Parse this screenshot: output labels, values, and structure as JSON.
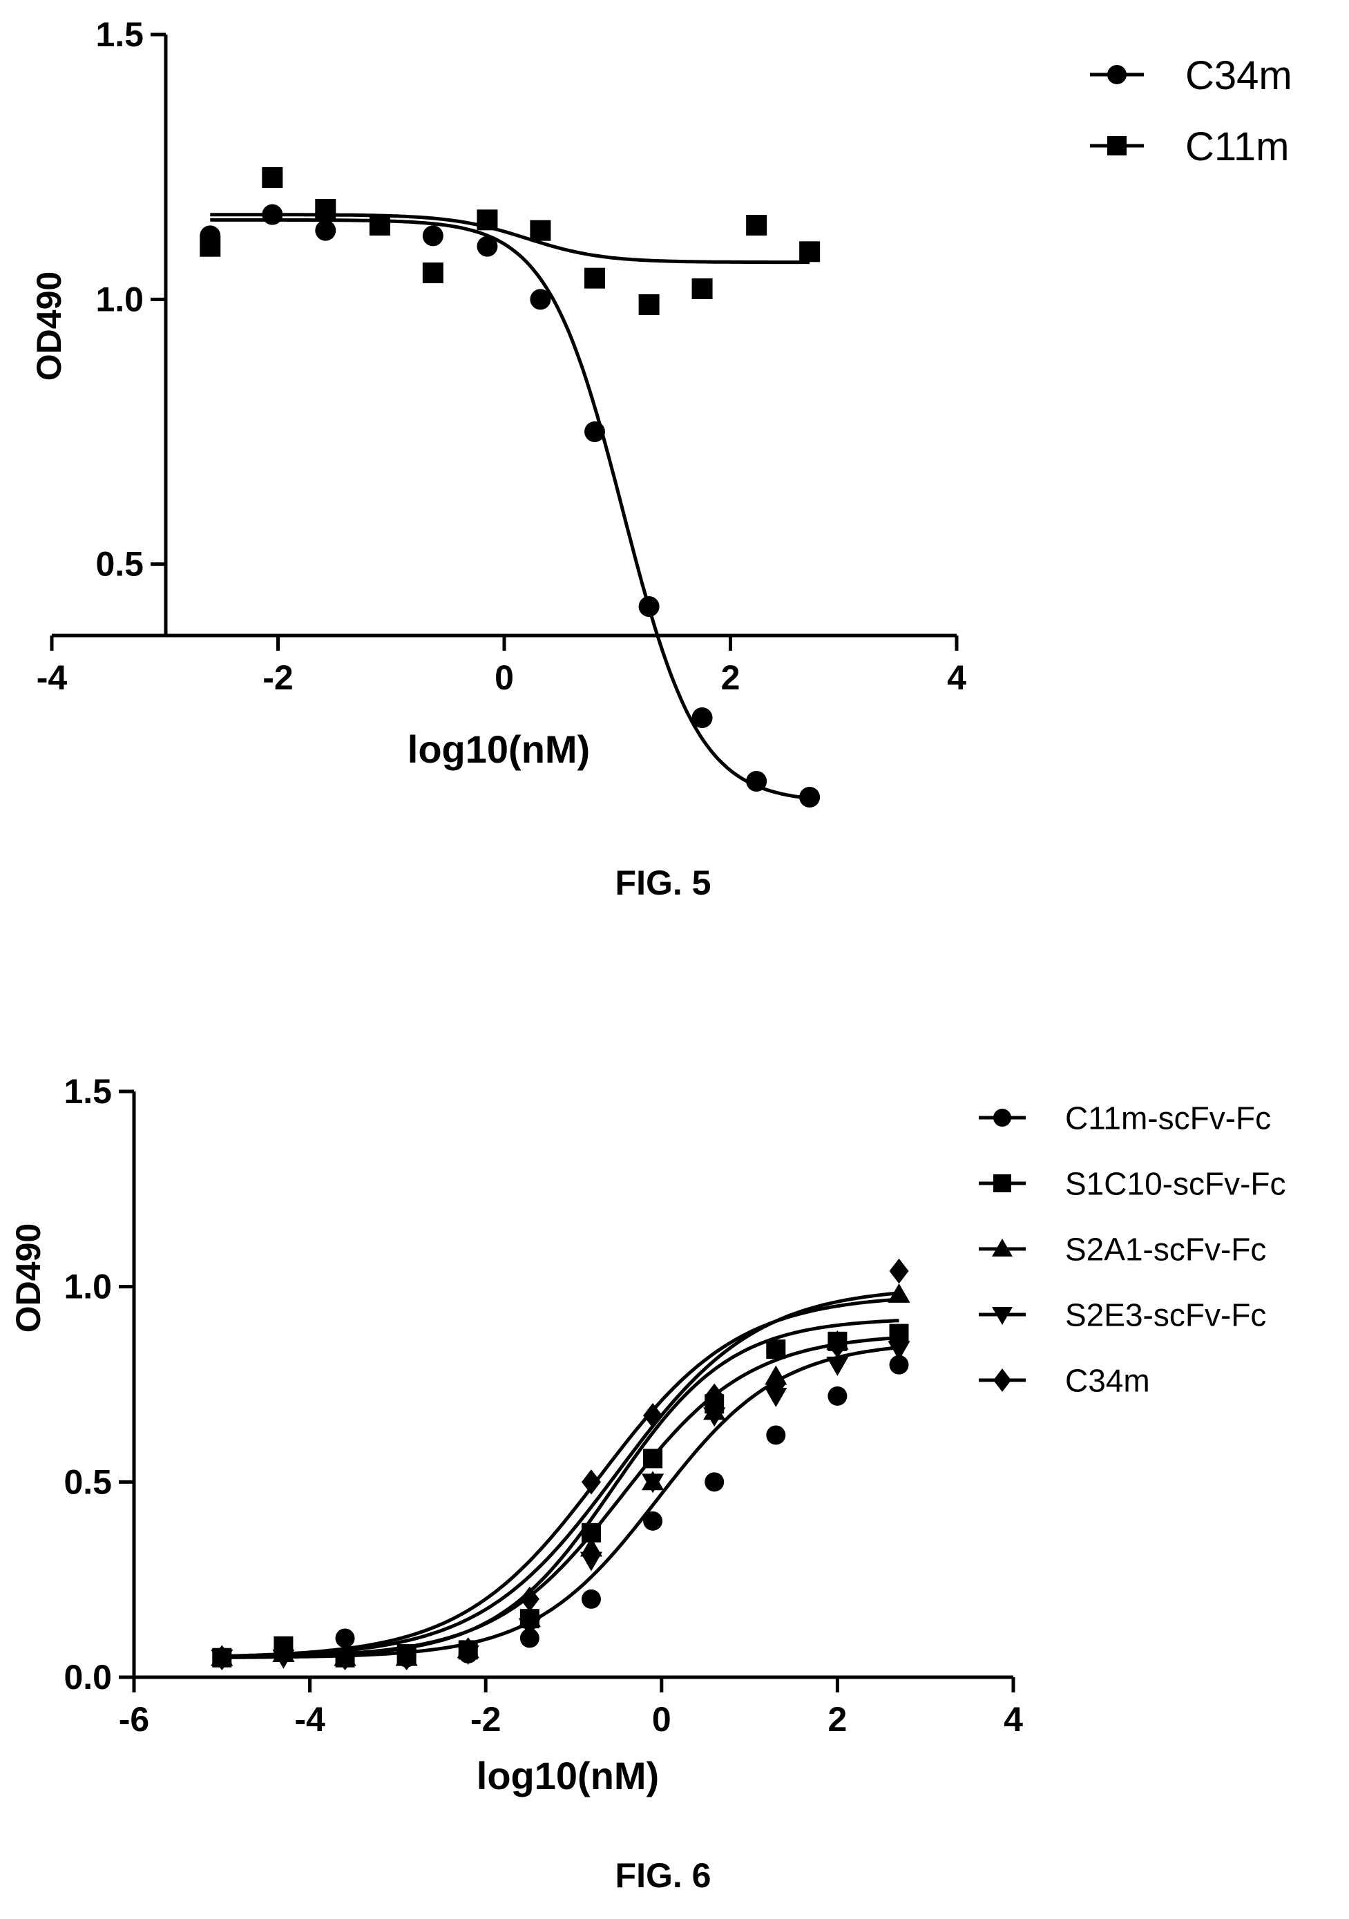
{
  "chart_data": [
    {
      "type": "scatter",
      "caption": "FIG. 5",
      "xlabel": "log10(nM)",
      "ylabel": "OD490",
      "xlim": [
        -4,
        4
      ],
      "ylim": [
        0,
        1.5
      ],
      "xticks": [
        -4,
        -2,
        0,
        2,
        4
      ],
      "yticks": [
        0.5,
        1.0,
        1.5
      ],
      "ytick_labels": [
        "0.5",
        "1.0",
        "1.5"
      ],
      "xtick_labels": [
        "-4",
        "-2",
        "0",
        "2",
        "4"
      ],
      "legend_position": "top-right",
      "series": [
        {
          "name": "C34m",
          "marker": "circle",
          "x": [
            -2.6,
            -2.05,
            -1.58,
            -1.1,
            -0.63,
            -0.15,
            0.32,
            0.8,
            1.28,
            1.75,
            2.23,
            2.7
          ],
          "y": [
            1.12,
            1.16,
            1.13,
            1.14,
            1.12,
            1.1,
            1.0,
            0.75,
            0.42,
            0.21,
            0.09,
            0.06
          ],
          "fit": {
            "model": "4PL",
            "top": 1.15,
            "bottom": 0.05,
            "logEC50": 1.05,
            "hill": -1.3
          }
        },
        {
          "name": "C11m",
          "marker": "square",
          "x": [
            -2.6,
            -2.05,
            -1.58,
            -1.1,
            -0.63,
            -0.15,
            0.32,
            0.8,
            1.28,
            1.75,
            2.23,
            2.7
          ],
          "y": [
            1.1,
            1.23,
            1.17,
            1.14,
            1.05,
            1.15,
            1.13,
            1.04,
            0.99,
            1.02,
            1.14,
            1.09
          ],
          "fit": {
            "model": "4PL",
            "top": 1.16,
            "bottom": 1.07,
            "logEC50": 0.2,
            "hill": -1.3
          }
        }
      ]
    },
    {
      "type": "scatter",
      "caption": "FIG. 6",
      "xlabel": "log10(nM)",
      "ylabel": "OD490",
      "xlim": [
        -6,
        4
      ],
      "ylim": [
        0,
        1.5
      ],
      "xticks": [
        -6,
        -4,
        -2,
        0,
        2,
        4
      ],
      "yticks": [
        0.0,
        0.5,
        1.0,
        1.5
      ],
      "ytick_labels": [
        "0.0",
        "0.5",
        "1.0",
        "1.5"
      ],
      "xtick_labels": [
        "-6",
        "-4",
        "-2",
        "0",
        "2",
        "4"
      ],
      "legend_position": "top-right",
      "series": [
        {
          "name": "C11m-scFv-Fc",
          "marker": "circle",
          "x": [
            -5.0,
            -4.3,
            -3.6,
            -2.9,
            -2.2,
            -1.5,
            -0.8,
            -0.1,
            0.6,
            1.3,
            2.0,
            2.7
          ],
          "y": [
            0.05,
            0.07,
            0.1,
            0.05,
            0.06,
            0.1,
            0.2,
            0.4,
            0.5,
            0.62,
            0.72,
            0.8
          ],
          "fit": {
            "model": "4PL",
            "top": 0.86,
            "bottom": 0.05,
            "logEC50": -0.05,
            "hill": 0.62
          }
        },
        {
          "name": "S1C10-scFv-Fc",
          "marker": "square",
          "x": [
            -5.0,
            -4.3,
            -3.6,
            -2.9,
            -2.2,
            -1.5,
            -0.8,
            -0.1,
            0.6,
            1.3,
            2.0,
            2.7
          ],
          "y": [
            0.05,
            0.08,
            0.05,
            0.06,
            0.07,
            0.15,
            0.37,
            0.56,
            0.7,
            0.84,
            0.86,
            0.88
          ],
          "fit": {
            "model": "4PL",
            "top": 0.92,
            "bottom": 0.05,
            "logEC50": -0.55,
            "hill": 0.65
          }
        },
        {
          "name": "S2A1-scFv-Fc",
          "marker": "triangle-up",
          "x": [
            -5.0,
            -4.3,
            -3.6,
            -2.9,
            -2.2,
            -1.5,
            -0.8,
            -0.1,
            0.6,
            1.3,
            2.0,
            2.7
          ],
          "y": [
            0.05,
            0.06,
            0.05,
            0.05,
            0.07,
            0.15,
            0.33,
            0.5,
            0.68,
            0.77,
            0.86,
            0.98
          ],
          "fit": {
            "model": "4PL",
            "top": 1.0,
            "bottom": 0.05,
            "logEC50": -0.5,
            "hill": 0.55
          }
        },
        {
          "name": "S2E3-scFv-Fc",
          "marker": "triangle-down",
          "x": [
            -5.0,
            -4.3,
            -3.6,
            -2.9,
            -2.2,
            -1.5,
            -0.8,
            -0.1,
            0.6,
            1.3,
            2.0,
            2.7
          ],
          "y": [
            0.05,
            0.05,
            0.05,
            0.05,
            0.06,
            0.13,
            0.3,
            0.5,
            0.67,
            0.72,
            0.8,
            0.84
          ],
          "fit": {
            "model": "4PL",
            "top": 0.88,
            "bottom": 0.05,
            "logEC50": -0.45,
            "hill": 0.6
          }
        },
        {
          "name": "C34m",
          "marker": "diamond",
          "x": [
            -5.0,
            -4.3,
            -3.6,
            -2.9,
            -2.2,
            -1.5,
            -0.8,
            -0.1,
            0.6,
            1.3,
            2.0,
            2.7
          ],
          "y": [
            0.05,
            0.06,
            0.05,
            0.05,
            0.07,
            0.2,
            0.5,
            0.67,
            0.72,
            0.75,
            0.85,
            1.04
          ],
          "fit": {
            "model": "4PL",
            "top": 0.98,
            "bottom": 0.05,
            "logEC50": -0.7,
            "hill": 0.55
          }
        }
      ]
    }
  ]
}
